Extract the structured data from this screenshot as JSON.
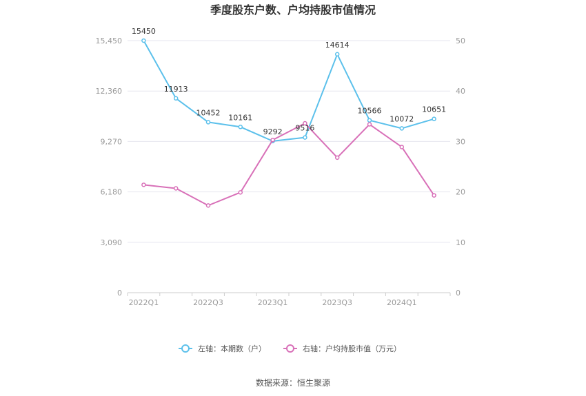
{
  "chart_data": {
    "type": "line",
    "title": "季度股东户数、户均持股市值情况",
    "categories": [
      "2022Q1",
      "2022Q2",
      "2022Q3",
      "2022Q4",
      "2023Q1",
      "2023Q2",
      "2023Q3",
      "2023Q4",
      "2024Q1",
      "2024Q2"
    ],
    "x_tick_labels": [
      "2022Q1",
      "2022Q3",
      "2023Q1",
      "2023Q3",
      "2024Q1"
    ],
    "left_axis": {
      "ticks": [
        "0",
        "3,090",
        "6,180",
        "9,270",
        "12,360",
        "15,450"
      ],
      "ylim": [
        0,
        15450
      ]
    },
    "right_axis": {
      "ticks": [
        "0",
        "10",
        "20",
        "30",
        "40",
        "50"
      ],
      "ylim": [
        0,
        50
      ]
    },
    "series": [
      {
        "name": "左轴：本期数（户）",
        "axis": "left",
        "color": "#5bc0eb",
        "values": [
          15450,
          11913,
          10452,
          10161,
          9292,
          9516,
          14614,
          10566,
          10072,
          10651
        ],
        "labels": [
          "15450",
          "11913",
          "10452",
          "10161",
          "9292",
          "9516",
          "14614",
          "10566",
          "10072",
          "10651"
        ]
      },
      {
        "name": "右轴：户均持股市值（万元）",
        "axis": "right",
        "color": "#d870b8",
        "values": [
          21.4,
          20.7,
          17.3,
          19.9,
          30.3,
          33.6,
          26.8,
          33.4,
          28.9,
          19.3
        ]
      }
    ],
    "grid": true,
    "legend_position": "bottom"
  },
  "footer": {
    "source": "数据来源：恒生聚源"
  }
}
